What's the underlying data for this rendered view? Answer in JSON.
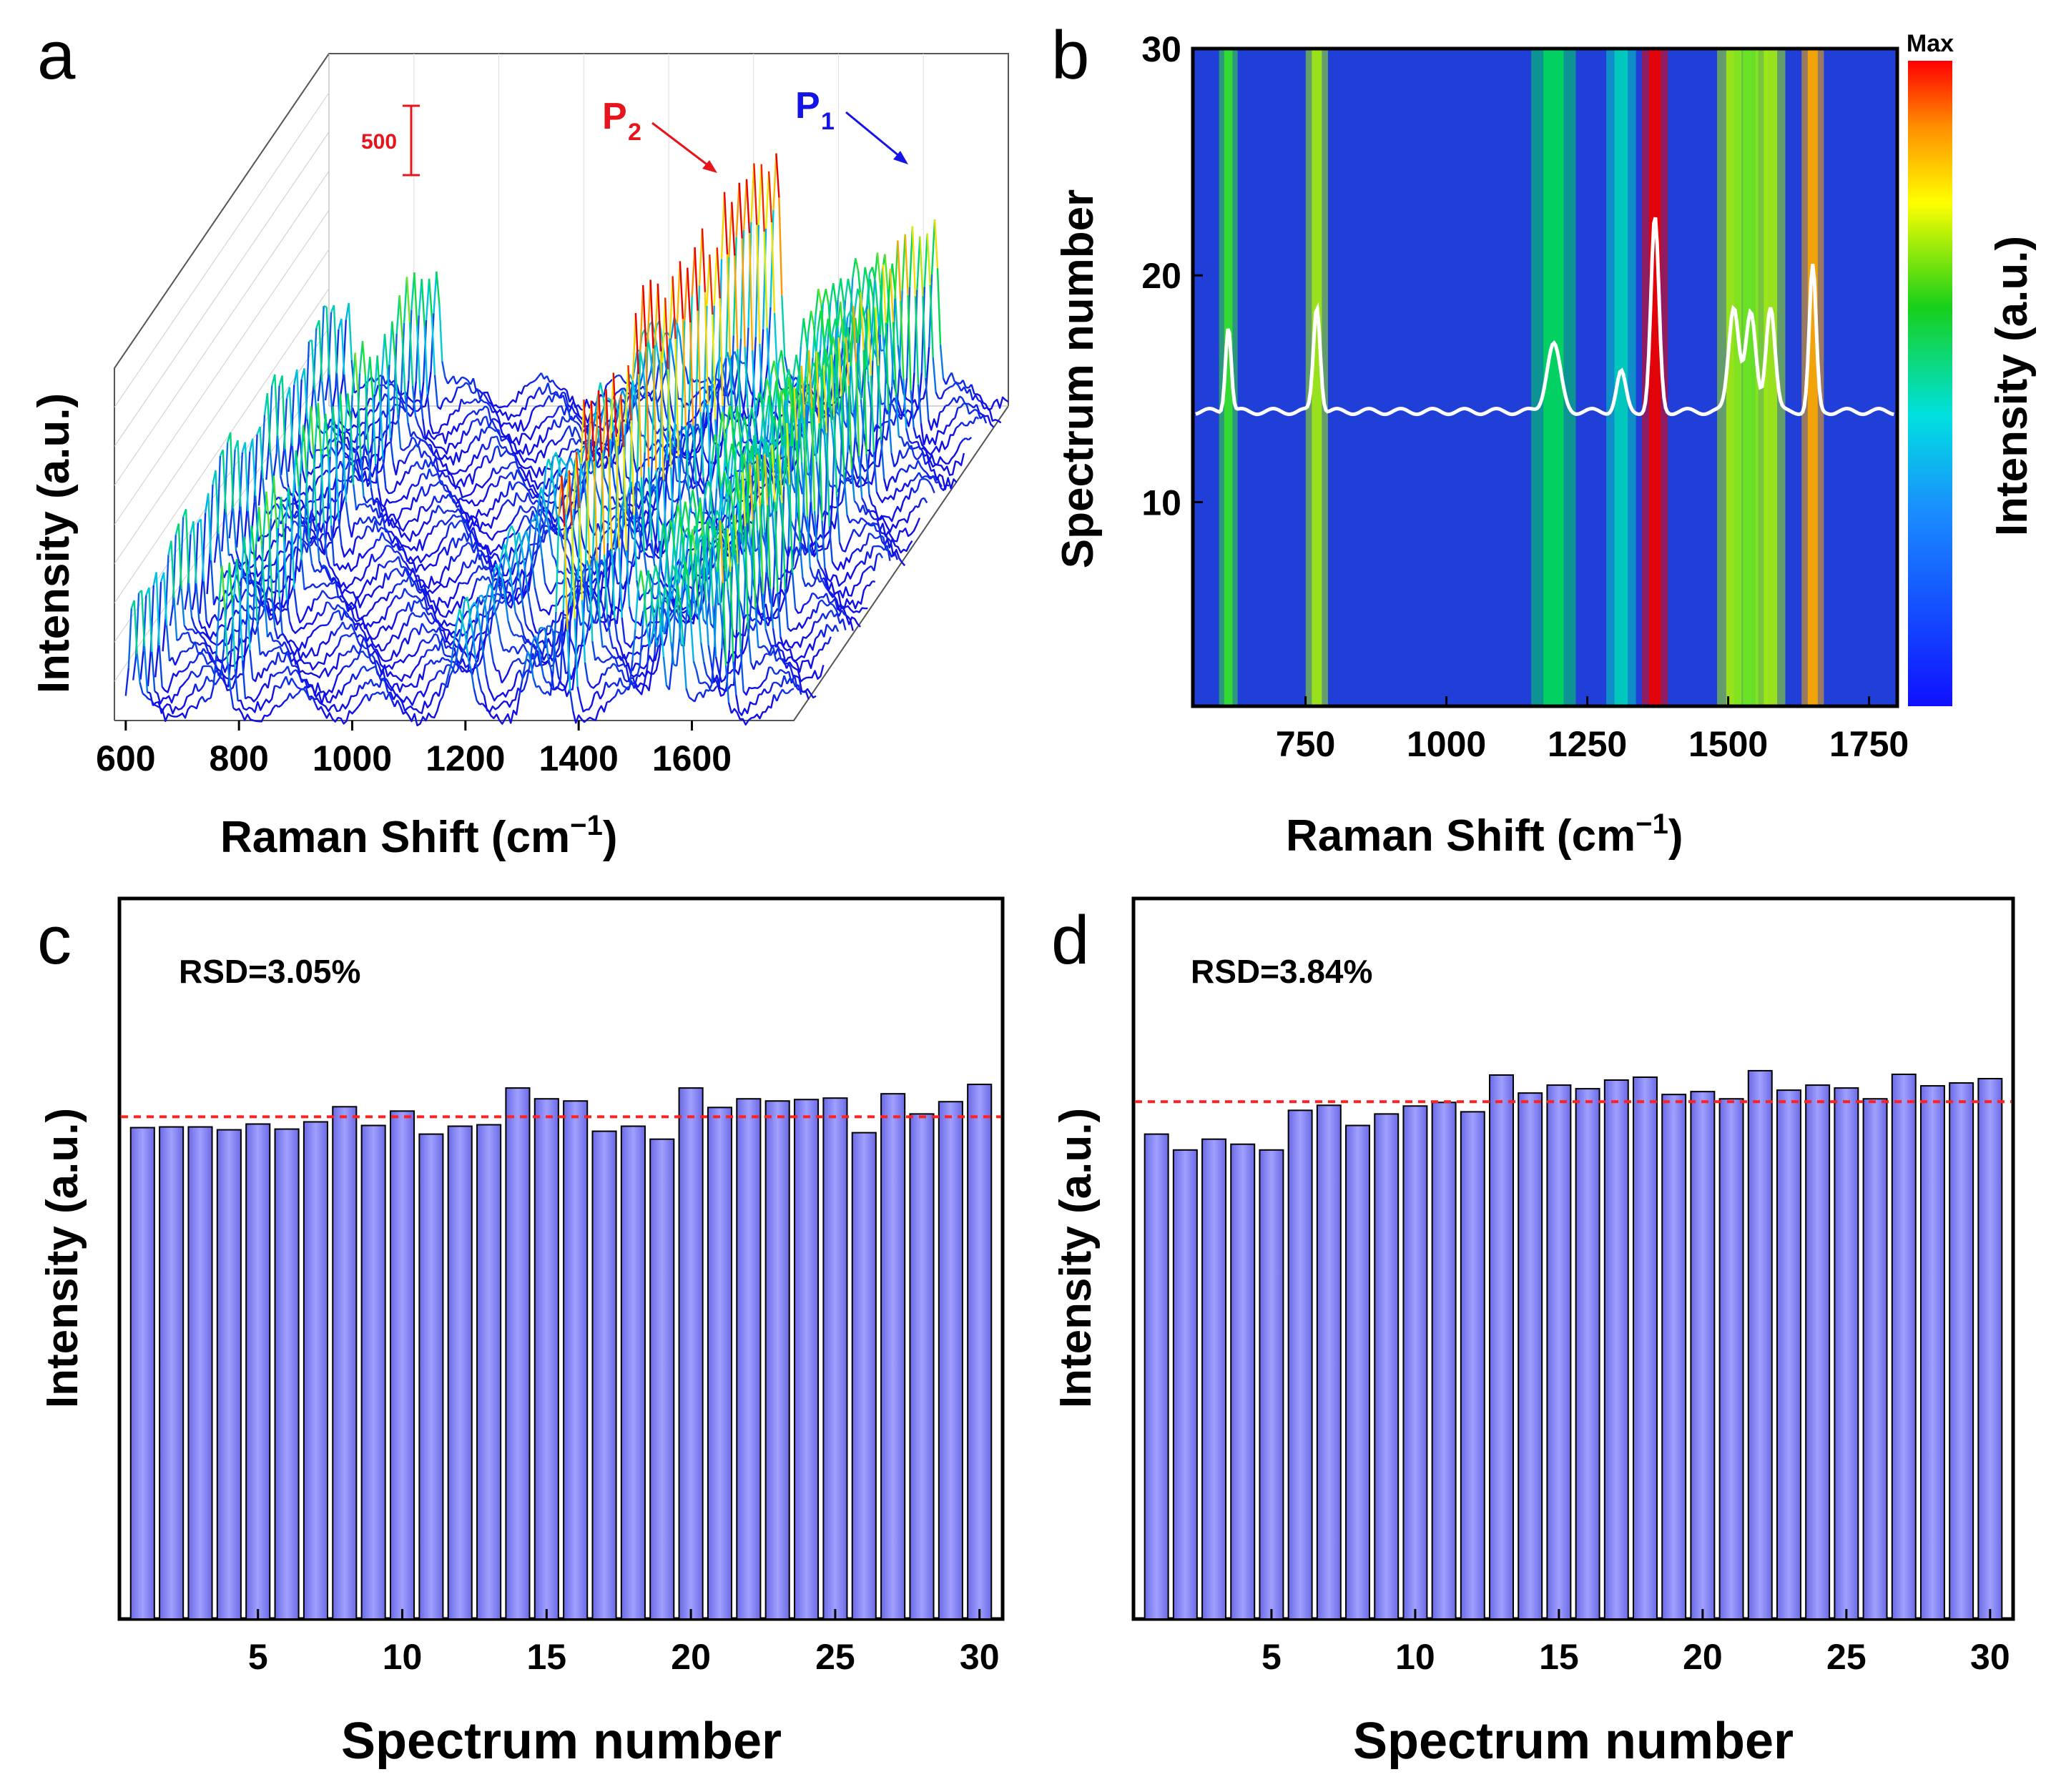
{
  "panels": {
    "a": "a",
    "b": "b",
    "c": "c",
    "d": "d"
  },
  "chart_data": [
    {
      "id": "a",
      "type": "line",
      "subtype": "3d-waterfall",
      "title": "",
      "xlabel_main": "Raman Shift (cm",
      "xlabel_sup": "−1",
      "xlabel_end": ")",
      "ylabel": "Intensity (a.u.)",
      "xticks": [
        600,
        800,
        1000,
        1200,
        1400,
        1600
      ],
      "xlim": [
        580,
        1780
      ],
      "n_spectra": 30,
      "scale_bar_label": "500",
      "scale_bar_color": "#e8141b",
      "peak_labels": [
        {
          "name": "P",
          "sub": "2",
          "color": "#e8141b",
          "x": 1370
        },
        {
          "name": "P",
          "sub": "1",
          "color": "#1414e6",
          "x": 1650
        }
      ],
      "peaks": [
        {
          "x": 613,
          "h": 0.45,
          "w": 5
        },
        {
          "x": 770,
          "h": 0.55,
          "w": 6
        },
        {
          "x": 1190,
          "h": 0.35,
          "w": 12
        },
        {
          "x": 1310,
          "h": 0.2,
          "w": 8
        },
        {
          "x": 1370,
          "h": 1.0,
          "w": 7
        },
        {
          "x": 1510,
          "h": 0.55,
          "w": 9
        },
        {
          "x": 1540,
          "h": 0.5,
          "w": 9
        },
        {
          "x": 1575,
          "h": 0.55,
          "w": 8
        },
        {
          "x": 1650,
          "h": 0.75,
          "w": 6
        }
      ]
    },
    {
      "id": "b",
      "type": "heatmap",
      "xlabel_main": "Raman Shift (cm",
      "xlabel_sup": "−1",
      "xlabel_end": ")",
      "ylabel": "Spectrum number",
      "colorbar_label": "Intensity (a.u.)",
      "colorbar_max_label": "Max",
      "xticks": [
        750,
        1000,
        1250,
        1500,
        1750
      ],
      "yticks": [
        10,
        20,
        30
      ],
      "xlim": [
        550,
        1800
      ],
      "ylim": [
        1,
        30
      ],
      "overlay_line_color": "#ffffff"
    },
    {
      "id": "c",
      "type": "bar",
      "annotation": "RSD=3.05%",
      "xlabel": "Spectrum number",
      "ylabel": "Intensity (a.u.)",
      "xticks": [
        5,
        10,
        15,
        20,
        25,
        30
      ],
      "xlim": [
        0.2,
        30.8
      ],
      "ylim": [
        0,
        1.0
      ],
      "mean_line": 0.697,
      "bar_color": "#8080ee",
      "mean_line_color": "#ff2020",
      "categories": [
        1,
        2,
        3,
        4,
        5,
        6,
        7,
        8,
        9,
        10,
        11,
        12,
        13,
        14,
        15,
        16,
        17,
        18,
        19,
        20,
        21,
        22,
        23,
        24,
        25,
        26,
        27,
        28,
        29,
        30
      ],
      "values": [
        0.682,
        0.683,
        0.683,
        0.679,
        0.687,
        0.68,
        0.69,
        0.711,
        0.685,
        0.705,
        0.673,
        0.684,
        0.686,
        0.737,
        0.722,
        0.719,
        0.677,
        0.684,
        0.666,
        0.737,
        0.71,
        0.722,
        0.719,
        0.721,
        0.723,
        0.675,
        0.729,
        0.701,
        0.718,
        0.742
      ]
    },
    {
      "id": "d",
      "type": "bar",
      "annotation": "RSD=3.84%",
      "xlabel": "Spectrum number",
      "ylabel": "Intensity (a.u.)",
      "xticks": [
        5,
        10,
        15,
        20,
        25,
        30
      ],
      "xlim": [
        0.2,
        30.8
      ],
      "ylim": [
        0,
        1.0
      ],
      "mean_line": 0.718,
      "bar_color": "#8080ee",
      "mean_line_color": "#ff2020",
      "categories": [
        1,
        2,
        3,
        4,
        5,
        6,
        7,
        8,
        9,
        10,
        11,
        12,
        13,
        14,
        15,
        16,
        17,
        18,
        19,
        20,
        21,
        22,
        23,
        24,
        25,
        26,
        27,
        28,
        29,
        30
      ],
      "values": [
        0.673,
        0.651,
        0.666,
        0.659,
        0.651,
        0.706,
        0.713,
        0.685,
        0.701,
        0.712,
        0.717,
        0.704,
        0.755,
        0.73,
        0.741,
        0.736,
        0.748,
        0.752,
        0.728,
        0.732,
        0.722,
        0.761,
        0.734,
        0.741,
        0.737,
        0.722,
        0.756,
        0.74,
        0.744,
        0.75
      ]
    }
  ]
}
